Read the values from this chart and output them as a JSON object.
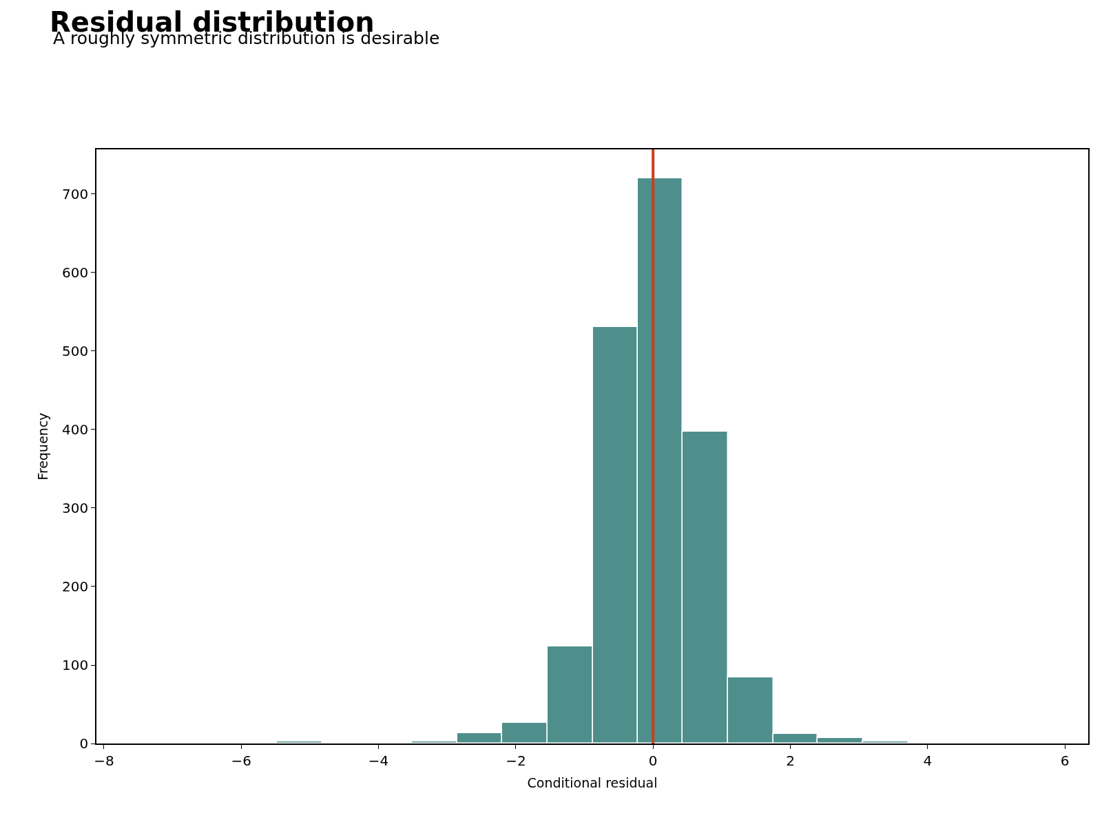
{
  "chart_data": {
    "type": "histogram",
    "title": "Residual distribution",
    "subtitle": "A roughly symmetric distribution is desirable",
    "xlabel": "Conditional residual",
    "ylabel": "Frequency",
    "bins": [
      -5.48,
      -4.82,
      -3.51,
      -2.85,
      -2.2,
      -1.54,
      -0.88,
      -0.22,
      0.43,
      1.09,
      1.75,
      2.4,
      3.06,
      3.72
    ],
    "values": [
      3,
      0,
      3,
      13,
      26,
      124,
      531,
      720,
      397,
      84,
      12,
      7,
      3
    ],
    "color": "#4e8f8c",
    "xlim": [
      -8.11,
      6.34
    ],
    "ylim": [
      0,
      757
    ],
    "xticks": [
      {
        "value": -8,
        "label": "−8"
      },
      {
        "value": -6,
        "label": "−6"
      },
      {
        "value": -4,
        "label": "−4"
      },
      {
        "value": -2,
        "label": "−2"
      },
      0,
      2,
      4,
      6
    ],
    "yticks": [
      0,
      100,
      200,
      300,
      400,
      500,
      600,
      700
    ],
    "ref_lines": [
      {
        "axis": "x",
        "value": 0,
        "color": "#c8401e"
      }
    ]
  }
}
